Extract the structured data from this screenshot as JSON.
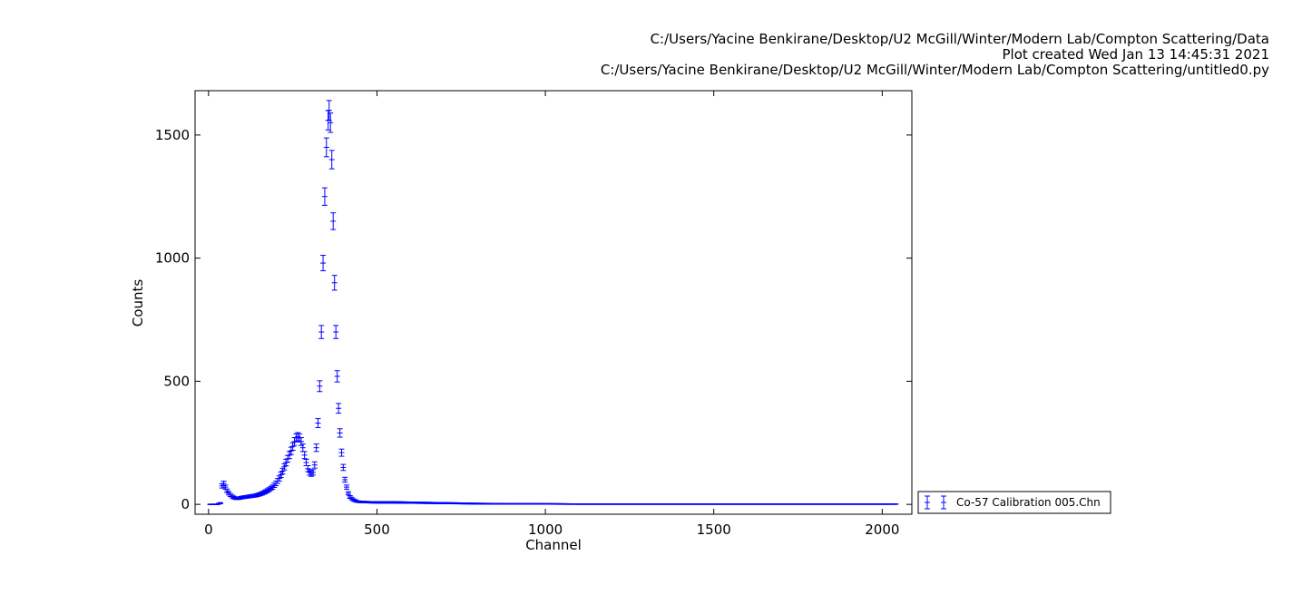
{
  "header": {
    "line1": "C:/Users/Yacine Benkirane/Desktop/U2 McGill/Winter/Modern Lab/Compton Scattering/Data",
    "line2": "Plot created Wed Jan 13 14:45:31 2021",
    "line3": "C:/Users/Yacine Benkirane/Desktop/U2 McGill/Winter/Modern Lab/Compton Scattering/untitled0.py"
  },
  "chart_data": {
    "type": "scatter",
    "marker": "errorbar",
    "xlabel": "Channel",
    "ylabel": "Counts",
    "xlim": [
      -40,
      2088
    ],
    "ylim": [
      -40,
      1680
    ],
    "xticks": [
      0,
      500,
      1000,
      1500,
      2000
    ],
    "yticks": [
      0,
      500,
      1000,
      1500
    ],
    "grid": false,
    "legend_placement": "outside-right-bottom",
    "series": [
      {
        "name": "Co-57 Calibration 005.Chn",
        "color": "#0000ff",
        "points": [
          [
            5,
            0
          ],
          [
            15,
            0
          ],
          [
            25,
            0
          ],
          [
            35,
            5
          ],
          [
            40,
            75
          ],
          [
            45,
            85
          ],
          [
            50,
            70
          ],
          [
            55,
            55
          ],
          [
            60,
            45
          ],
          [
            65,
            38
          ],
          [
            70,
            32
          ],
          [
            75,
            28
          ],
          [
            80,
            25
          ],
          [
            90,
            25
          ],
          [
            100,
            28
          ],
          [
            110,
            30
          ],
          [
            120,
            32
          ],
          [
            130,
            34
          ],
          [
            140,
            36
          ],
          [
            150,
            40
          ],
          [
            160,
            45
          ],
          [
            170,
            52
          ],
          [
            180,
            60
          ],
          [
            190,
            70
          ],
          [
            200,
            85
          ],
          [
            210,
            105
          ],
          [
            220,
            135
          ],
          [
            230,
            170
          ],
          [
            240,
            200
          ],
          [
            250,
            235
          ],
          [
            255,
            255
          ],
          [
            260,
            270
          ],
          [
            265,
            275
          ],
          [
            270,
            270
          ],
          [
            275,
            255
          ],
          [
            280,
            230
          ],
          [
            285,
            200
          ],
          [
            290,
            170
          ],
          [
            295,
            145
          ],
          [
            300,
            130
          ],
          [
            305,
            125
          ],
          [
            310,
            130
          ],
          [
            315,
            160
          ],
          [
            320,
            230
          ],
          [
            325,
            330
          ],
          [
            330,
            480
          ],
          [
            335,
            700
          ],
          [
            340,
            980
          ],
          [
            345,
            1250
          ],
          [
            350,
            1450
          ],
          [
            355,
            1560
          ],
          [
            358,
            1600
          ],
          [
            362,
            1550
          ],
          [
            366,
            1400
          ],
          [
            370,
            1150
          ],
          [
            374,
            900
          ],
          [
            378,
            700
          ],
          [
            382,
            520
          ],
          [
            386,
            390
          ],
          [
            390,
            290
          ],
          [
            395,
            210
          ],
          [
            400,
            150
          ],
          [
            405,
            100
          ],
          [
            410,
            70
          ],
          [
            415,
            45
          ],
          [
            420,
            30
          ],
          [
            430,
            18
          ],
          [
            440,
            12
          ],
          [
            450,
            10
          ],
          [
            470,
            9
          ],
          [
            500,
            8
          ],
          [
            550,
            8
          ],
          [
            600,
            7
          ],
          [
            650,
            6
          ],
          [
            700,
            5
          ],
          [
            750,
            4
          ],
          [
            800,
            3
          ],
          [
            900,
            2
          ],
          [
            1000,
            2
          ],
          [
            1100,
            1
          ],
          [
            1200,
            1
          ],
          [
            1300,
            1
          ],
          [
            1400,
            1
          ],
          [
            1500,
            1
          ],
          [
            1600,
            1
          ],
          [
            1700,
            1
          ],
          [
            1800,
            1
          ],
          [
            1900,
            1
          ],
          [
            2000,
            1
          ],
          [
            2040,
            1
          ]
        ]
      }
    ]
  }
}
